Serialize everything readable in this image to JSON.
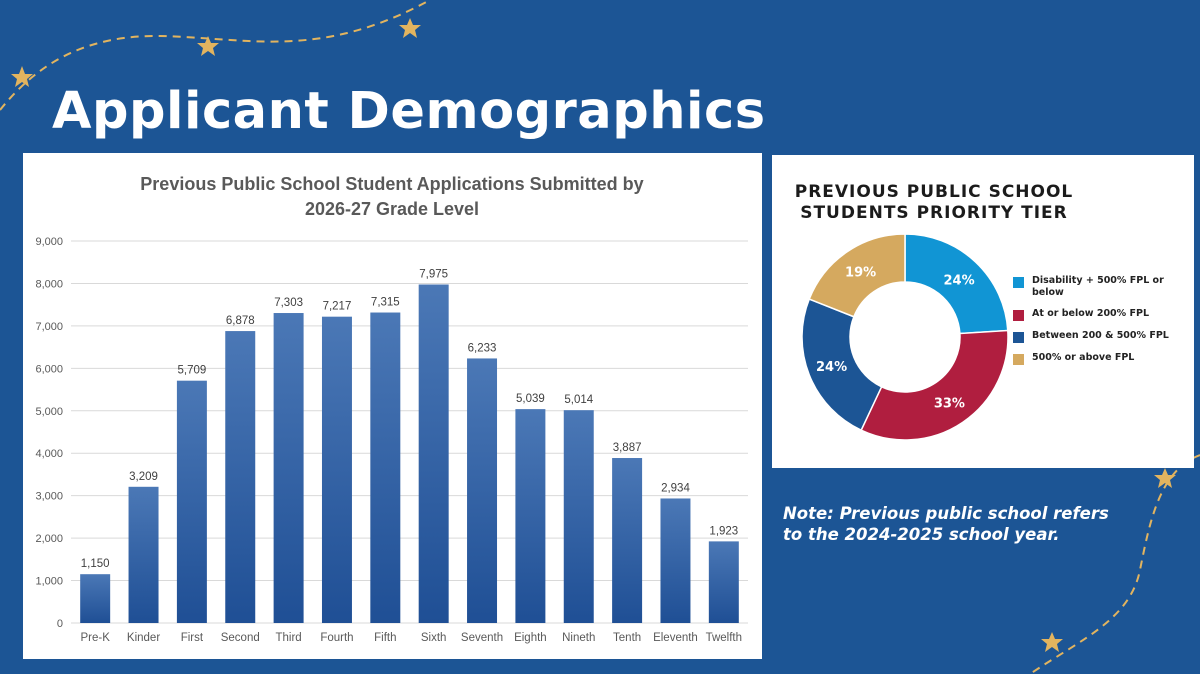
{
  "page": {
    "title": "Applicant Demographics",
    "note": "Note: Previous public school refers to the 2024-2025 school year.",
    "colors": {
      "background": "#1c5595",
      "accent_gold": "#e2b45f"
    }
  },
  "chart_data": [
    {
      "type": "bar",
      "title_lines": [
        "Previous Public School Student Applications Submitted by",
        "2026-27 Grade Level"
      ],
      "categories": [
        "Pre-K",
        "Kinder",
        "First",
        "Second",
        "Third",
        "Fourth",
        "Fifth",
        "Sixth",
        "Seventh",
        "Eighth",
        "Nineth",
        "Tenth",
        "Eleventh",
        "Twelfth"
      ],
      "values": [
        1150,
        3209,
        5709,
        6878,
        7303,
        7217,
        7315,
        7975,
        6233,
        5039,
        5014,
        3887,
        2934,
        1923
      ],
      "value_labels": [
        "1,150",
        "3,209",
        "5,709",
        "6,878",
        "7,303",
        "7,217",
        "7,315",
        "7,975",
        "6,233",
        "5,039",
        "5,014",
        "3,887",
        "2,934",
        "1,923"
      ],
      "ylim": [
        0,
        9000
      ],
      "y_ticks": [
        "0",
        "1,000",
        "2,000",
        "3,000",
        "4,000",
        "5,000",
        "6,000",
        "7,000",
        "8,000",
        "9,000"
      ],
      "grid": true,
      "bar_color": "#2a5a9e"
    },
    {
      "type": "pie",
      "style": "donut",
      "title_lines": [
        "PREVIOUS PUBLIC SCHOOL",
        "STUDENTS PRIORITY TIER"
      ],
      "slices": [
        {
          "label": "Disability + 500% FPL or below",
          "value": 24,
          "value_label": "24%",
          "color": "#1195d4"
        },
        {
          "label": "At or below 200% FPL",
          "value": 33,
          "value_label": "33%",
          "color": "#b01e3f"
        },
        {
          "label": "Between 200 & 500% FPL",
          "value": 24,
          "value_label": "24%",
          "color": "#1c5595"
        },
        {
          "label": "500% or above FPL",
          "value": 19,
          "value_label": "19%",
          "color": "#d5a95f"
        }
      ],
      "legend_position": "right"
    }
  ]
}
